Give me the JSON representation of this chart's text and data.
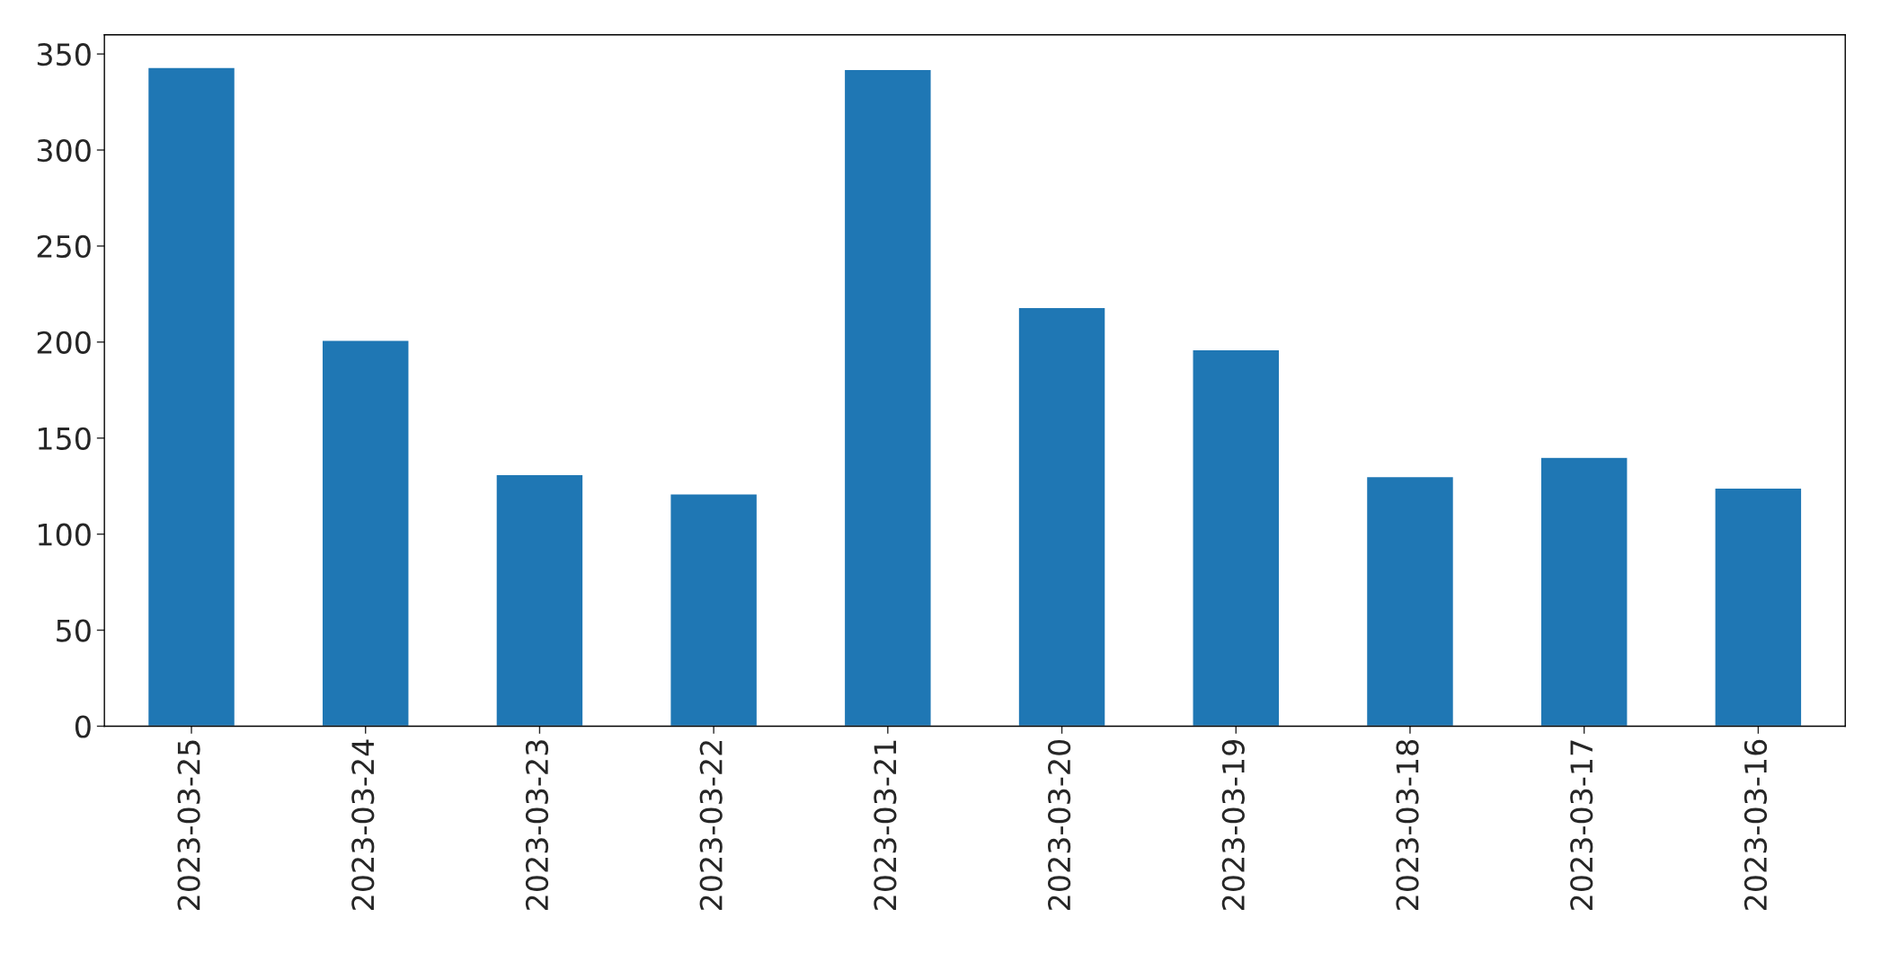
{
  "chart_data": {
    "type": "bar",
    "categories": [
      "2023-03-25",
      "2023-03-24",
      "2023-03-23",
      "2023-03-22",
      "2023-03-21",
      "2023-03-20",
      "2023-03-19",
      "2023-03-18",
      "2023-03-17",
      "2023-03-16"
    ],
    "values": [
      343,
      201,
      131,
      121,
      342,
      218,
      196,
      130,
      140,
      124
    ],
    "color": "#1f77b4",
    "ylim": [
      0,
      360
    ],
    "yticks": [
      0,
      50,
      100,
      150,
      200,
      250,
      300,
      350
    ],
    "grid": false,
    "legend": false
  }
}
